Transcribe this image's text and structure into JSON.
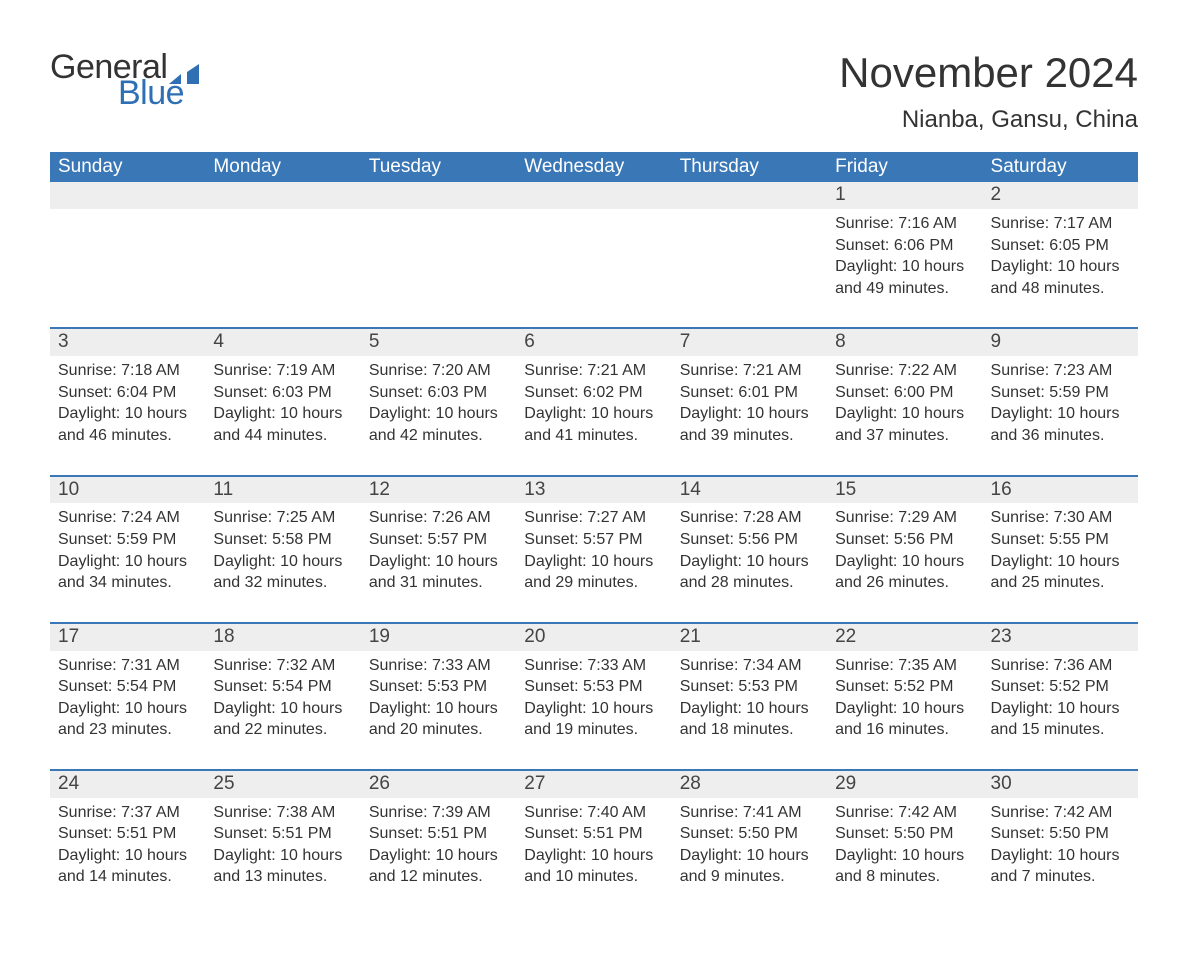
{
  "brand": {
    "word1": "General",
    "word2": "Blue",
    "accent": "#2f6fb3"
  },
  "title": "November 2024",
  "location": "Nianba, Gansu, China",
  "colors": {
    "header_bg": "#3a77b7",
    "header_text": "#ffffff",
    "daynum_bg": "#eeeeee",
    "text": "#333333",
    "page_bg": "#ffffff",
    "row_sep": "#3a77b7"
  },
  "fontsize": {
    "title": 42,
    "subtitle": 24,
    "dayheader": 19,
    "daynum": 19,
    "body": 16
  },
  "weekdays": [
    "Sunday",
    "Monday",
    "Tuesday",
    "Wednesday",
    "Thursday",
    "Friday",
    "Saturday"
  ],
  "weeks": [
    [
      null,
      null,
      null,
      null,
      null,
      {
        "n": "1",
        "sunrise": "Sunrise: 7:16 AM",
        "sunset": "Sunset: 6:06 PM",
        "daylight": "Daylight: 10 hours and 49 minutes."
      },
      {
        "n": "2",
        "sunrise": "Sunrise: 7:17 AM",
        "sunset": "Sunset: 6:05 PM",
        "daylight": "Daylight: 10 hours and 48 minutes."
      }
    ],
    [
      {
        "n": "3",
        "sunrise": "Sunrise: 7:18 AM",
        "sunset": "Sunset: 6:04 PM",
        "daylight": "Daylight: 10 hours and 46 minutes."
      },
      {
        "n": "4",
        "sunrise": "Sunrise: 7:19 AM",
        "sunset": "Sunset: 6:03 PM",
        "daylight": "Daylight: 10 hours and 44 minutes."
      },
      {
        "n": "5",
        "sunrise": "Sunrise: 7:20 AM",
        "sunset": "Sunset: 6:03 PM",
        "daylight": "Daylight: 10 hours and 42 minutes."
      },
      {
        "n": "6",
        "sunrise": "Sunrise: 7:21 AM",
        "sunset": "Sunset: 6:02 PM",
        "daylight": "Daylight: 10 hours and 41 minutes."
      },
      {
        "n": "7",
        "sunrise": "Sunrise: 7:21 AM",
        "sunset": "Sunset: 6:01 PM",
        "daylight": "Daylight: 10 hours and 39 minutes."
      },
      {
        "n": "8",
        "sunrise": "Sunrise: 7:22 AM",
        "sunset": "Sunset: 6:00 PM",
        "daylight": "Daylight: 10 hours and 37 minutes."
      },
      {
        "n": "9",
        "sunrise": "Sunrise: 7:23 AM",
        "sunset": "Sunset: 5:59 PM",
        "daylight": "Daylight: 10 hours and 36 minutes."
      }
    ],
    [
      {
        "n": "10",
        "sunrise": "Sunrise: 7:24 AM",
        "sunset": "Sunset: 5:59 PM",
        "daylight": "Daylight: 10 hours and 34 minutes."
      },
      {
        "n": "11",
        "sunrise": "Sunrise: 7:25 AM",
        "sunset": "Sunset: 5:58 PM",
        "daylight": "Daylight: 10 hours and 32 minutes."
      },
      {
        "n": "12",
        "sunrise": "Sunrise: 7:26 AM",
        "sunset": "Sunset: 5:57 PM",
        "daylight": "Daylight: 10 hours and 31 minutes."
      },
      {
        "n": "13",
        "sunrise": "Sunrise: 7:27 AM",
        "sunset": "Sunset: 5:57 PM",
        "daylight": "Daylight: 10 hours and 29 minutes."
      },
      {
        "n": "14",
        "sunrise": "Sunrise: 7:28 AM",
        "sunset": "Sunset: 5:56 PM",
        "daylight": "Daylight: 10 hours and 28 minutes."
      },
      {
        "n": "15",
        "sunrise": "Sunrise: 7:29 AM",
        "sunset": "Sunset: 5:56 PM",
        "daylight": "Daylight: 10 hours and 26 minutes."
      },
      {
        "n": "16",
        "sunrise": "Sunrise: 7:30 AM",
        "sunset": "Sunset: 5:55 PM",
        "daylight": "Daylight: 10 hours and 25 minutes."
      }
    ],
    [
      {
        "n": "17",
        "sunrise": "Sunrise: 7:31 AM",
        "sunset": "Sunset: 5:54 PM",
        "daylight": "Daylight: 10 hours and 23 minutes."
      },
      {
        "n": "18",
        "sunrise": "Sunrise: 7:32 AM",
        "sunset": "Sunset: 5:54 PM",
        "daylight": "Daylight: 10 hours and 22 minutes."
      },
      {
        "n": "19",
        "sunrise": "Sunrise: 7:33 AM",
        "sunset": "Sunset: 5:53 PM",
        "daylight": "Daylight: 10 hours and 20 minutes."
      },
      {
        "n": "20",
        "sunrise": "Sunrise: 7:33 AM",
        "sunset": "Sunset: 5:53 PM",
        "daylight": "Daylight: 10 hours and 19 minutes."
      },
      {
        "n": "21",
        "sunrise": "Sunrise: 7:34 AM",
        "sunset": "Sunset: 5:53 PM",
        "daylight": "Daylight: 10 hours and 18 minutes."
      },
      {
        "n": "22",
        "sunrise": "Sunrise: 7:35 AM",
        "sunset": "Sunset: 5:52 PM",
        "daylight": "Daylight: 10 hours and 16 minutes."
      },
      {
        "n": "23",
        "sunrise": "Sunrise: 7:36 AM",
        "sunset": "Sunset: 5:52 PM",
        "daylight": "Daylight: 10 hours and 15 minutes."
      }
    ],
    [
      {
        "n": "24",
        "sunrise": "Sunrise: 7:37 AM",
        "sunset": "Sunset: 5:51 PM",
        "daylight": "Daylight: 10 hours and 14 minutes."
      },
      {
        "n": "25",
        "sunrise": "Sunrise: 7:38 AM",
        "sunset": "Sunset: 5:51 PM",
        "daylight": "Daylight: 10 hours and 13 minutes."
      },
      {
        "n": "26",
        "sunrise": "Sunrise: 7:39 AM",
        "sunset": "Sunset: 5:51 PM",
        "daylight": "Daylight: 10 hours and 12 minutes."
      },
      {
        "n": "27",
        "sunrise": "Sunrise: 7:40 AM",
        "sunset": "Sunset: 5:51 PM",
        "daylight": "Daylight: 10 hours and 10 minutes."
      },
      {
        "n": "28",
        "sunrise": "Sunrise: 7:41 AM",
        "sunset": "Sunset: 5:50 PM",
        "daylight": "Daylight: 10 hours and 9 minutes."
      },
      {
        "n": "29",
        "sunrise": "Sunrise: 7:42 AM",
        "sunset": "Sunset: 5:50 PM",
        "daylight": "Daylight: 10 hours and 8 minutes."
      },
      {
        "n": "30",
        "sunrise": "Sunrise: 7:42 AM",
        "sunset": "Sunset: 5:50 PM",
        "daylight": "Daylight: 10 hours and 7 minutes."
      }
    ]
  ]
}
